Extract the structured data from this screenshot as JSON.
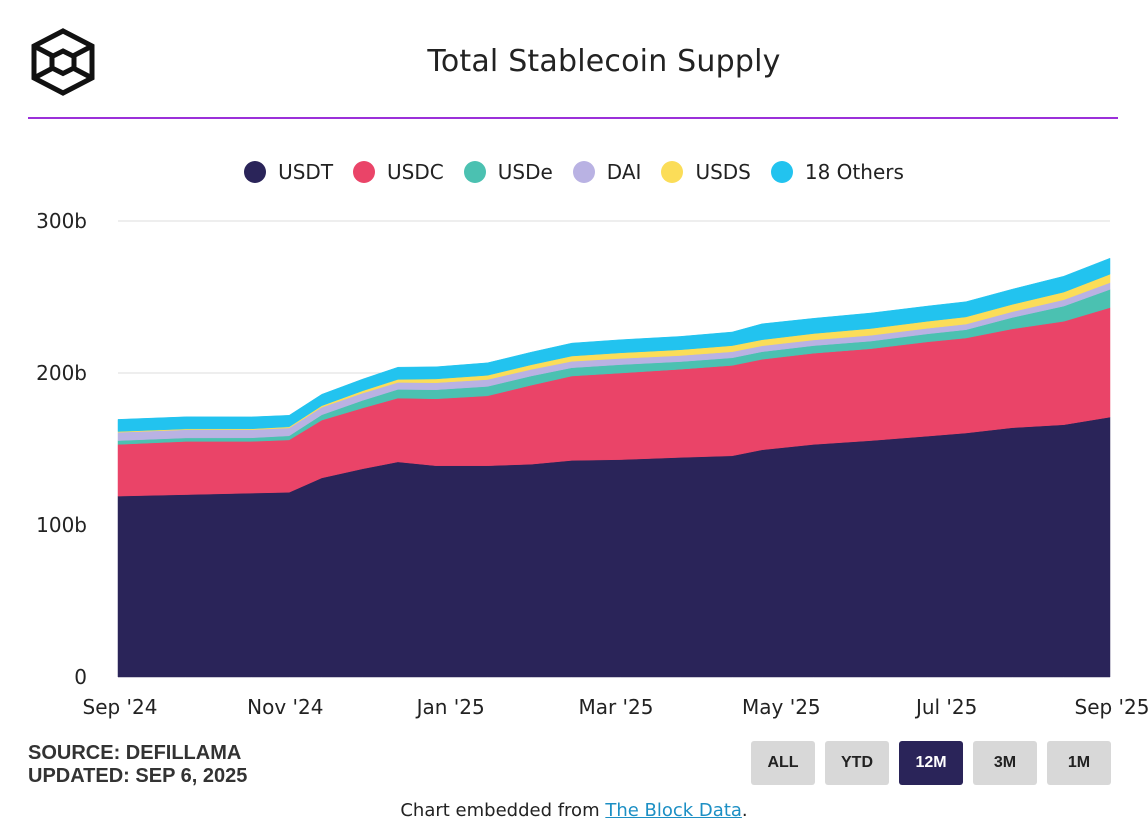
{
  "header": {
    "title": "Total Stablecoin Supply",
    "logo_icon": "the-block-cube-logo-icon"
  },
  "footer": {
    "source": "SOURCE: DEFILLAMA",
    "updated": "UPDATED: SEP 6, 2025",
    "embed_prefix": "Chart embedded from ",
    "embed_link": "The Block Data",
    "embed_suffix": "."
  },
  "range_buttons": [
    {
      "label": "ALL",
      "active": false
    },
    {
      "label": "YTD",
      "active": false
    },
    {
      "label": "12M",
      "active": true
    },
    {
      "label": "3M",
      "active": false
    },
    {
      "label": "1M",
      "active": false
    }
  ],
  "colors": {
    "accent_rule": "#9b30d9",
    "active_button": "#2a2459"
  },
  "chart_data": {
    "type": "area",
    "stacked": true,
    "title": "Total Stablecoin Supply",
    "xlabel": "",
    "ylabel": "",
    "x_ticks": [
      "Sep '24",
      "Nov '24",
      "Jan '25",
      "Mar '25",
      "May '25",
      "Jul '25",
      "Sep '25"
    ],
    "y_ticks": [
      "0",
      "100b",
      "200b",
      "300b"
    ],
    "ylim": [
      0,
      300
    ],
    "unit": "billions USD",
    "grid": true,
    "legend_position": "top",
    "x": [
      "2024-09-06",
      "2024-10-01",
      "2024-10-25",
      "2024-11-08",
      "2024-11-20",
      "2024-12-05",
      "2024-12-18",
      "2025-01-01",
      "2025-01-20",
      "2025-02-05",
      "2025-02-20",
      "2025-03-10",
      "2025-04-01",
      "2025-04-20",
      "2025-05-01",
      "2025-05-20",
      "2025-06-10",
      "2025-07-01",
      "2025-07-15",
      "2025-08-01",
      "2025-08-20",
      "2025-09-06"
    ],
    "series": [
      {
        "name": "USDT",
        "color": "#2a2459",
        "values": [
          119,
          120,
          121,
          121.5,
          131,
          137,
          141.5,
          139,
          139,
          140,
          142.5,
          143,
          144.5,
          145.5,
          149.5,
          153,
          155.5,
          158.5,
          160.5,
          164,
          166,
          171
        ]
      },
      {
        "name": "USDC",
        "color": "#ea4468",
        "values": [
          34,
          35,
          34,
          34.5,
          38,
          40,
          42,
          44,
          46,
          52,
          55.5,
          57,
          58,
          59.5,
          59.5,
          60,
          60.5,
          62,
          62.5,
          65,
          68,
          72
        ]
      },
      {
        "name": "USDe",
        "color": "#4bc1b1",
        "values": [
          2.5,
          2.3,
          2.4,
          2.7,
          3.5,
          5,
          5.7,
          6,
          6.2,
          6,
          5.5,
          5.5,
          5,
          5,
          5,
          5,
          5,
          5.3,
          5.5,
          7.5,
          10,
          12
        ]
      },
      {
        "name": "DAI",
        "color": "#b9b2e3",
        "values": [
          5.5,
          5.4,
          5.3,
          5.2,
          5,
          4.8,
          4.6,
          4.6,
          4.5,
          4.4,
          4.2,
          4.1,
          4,
          4,
          3.9,
          3.8,
          3.8,
          3.7,
          3.7,
          3.8,
          4.2,
          4.5
        ]
      },
      {
        "name": "USDS",
        "color": "#fbdd58",
        "values": [
          0.5,
          0.5,
          0.6,
          0.7,
          1,
          1.5,
          2,
          2.5,
          2.8,
          3,
          3.5,
          3.7,
          3.8,
          4,
          4,
          4.2,
          4.5,
          4.6,
          4.7,
          4.8,
          5,
          5.5
        ]
      },
      {
        "name": "18 Others",
        "color": "#22c3ef",
        "values": [
          8,
          8,
          7.8,
          7.6,
          7.5,
          7.7,
          8,
          8,
          8.2,
          8.3,
          8.5,
          8.6,
          8.8,
          9,
          10.5,
          10,
          10.2,
          10,
          10,
          10,
          10.5,
          10.5
        ]
      }
    ]
  }
}
